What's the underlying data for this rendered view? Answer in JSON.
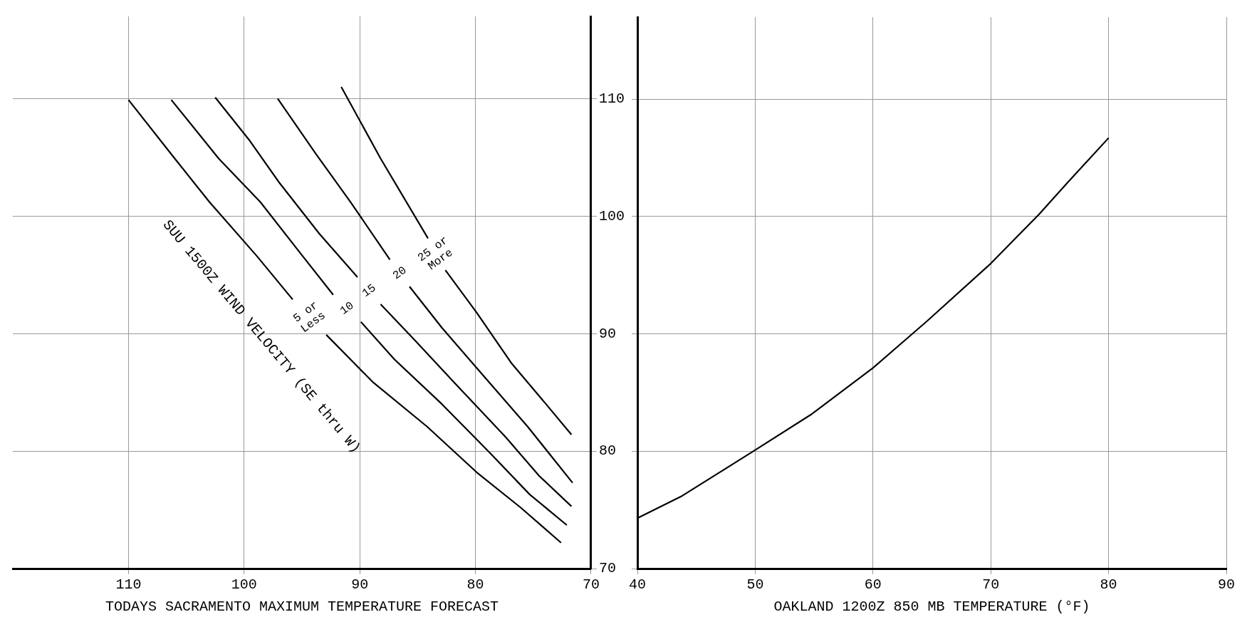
{
  "chart_data": [
    {
      "type": "line",
      "xlabel": "TODAYS SACRAMENTO MAXIMUM TEMPERATURE FORECAST",
      "xlim": [
        120,
        70
      ],
      "xticks": [
        110,
        100,
        90,
        80,
        70
      ],
      "ylim": [
        70,
        117
      ],
      "yticks": [
        70,
        80,
        90,
        100,
        110
      ],
      "grid": true,
      "legend": false,
      "marker": "none",
      "line_style": "solid",
      "annotations": [
        "SUU 1500Z WIND VELOCITY (SE thru W)"
      ],
      "series": [
        {
          "name": "5 or Less",
          "color": "#000000",
          "x": [
            110,
            106,
            103,
            98.9,
            95.8,
            94.3,
            92.9,
            88.9,
            84.2,
            79.9,
            76.1,
            72.6
          ],
          "values": [
            109.9,
            104.9,
            101.2,
            96.6,
            92.9,
            null,
            89.9,
            85.9,
            82.1,
            78.2,
            75.2,
            72.2
          ]
        },
        {
          "name": "10",
          "color": "#000000",
          "x": [
            106.3,
            102.2,
            98.6,
            95.1,
            92.3,
            91.1,
            89.9,
            87,
            82.9,
            78.8,
            75.3,
            72.1
          ],
          "values": [
            109.9,
            104.9,
            101.2,
            96.8,
            93.3,
            null,
            91,
            87.8,
            84,
            79.9,
            76.3,
            73.7
          ]
        },
        {
          "name": "15",
          "color": "#000000",
          "x": [
            102.5,
            99.5,
            97,
            93.5,
            90.2,
            89.2,
            88.2,
            85.3,
            81.8,
            77.4,
            74.5,
            71.7
          ],
          "values": [
            110.1,
            106.4,
            102.9,
            98.5,
            94.8,
            null,
            92.5,
            89.5,
            85.8,
            81.2,
            77.9,
            75.3
          ]
        },
        {
          "name": "20",
          "color": "#000000",
          "x": [
            97.1,
            93.8,
            90.8,
            87.4,
            86.5,
            85.7,
            82.9,
            79.3,
            75.5,
            71.6
          ],
          "values": [
            110,
            105.3,
            101.2,
            96.3,
            null,
            94,
            90.5,
            86.4,
            82.1,
            77.3
          ]
        },
        {
          "name": "25 or More",
          "color": "#000000",
          "x": [
            91.6,
            88.2,
            84.1,
            83.3,
            82.6,
            79.9,
            76.9,
            73.9,
            71.7
          ],
          "values": [
            111,
            104.9,
            98.1,
            null,
            95.4,
            91.8,
            87.5,
            84,
            81.4
          ]
        }
      ]
    },
    {
      "type": "line",
      "xlabel": "OAKLAND 1200Z 850 MB TEMPERATURE (°F)",
      "xlim": [
        40,
        90
      ],
      "xticks": [
        40,
        50,
        60,
        70,
        80,
        90
      ],
      "ylim": [
        70,
        117
      ],
      "yticks": [
        70,
        80,
        90,
        100,
        110
      ],
      "tick_labels": "x",
      "grid": true,
      "legend": false,
      "marker": "none",
      "line_style": "solid",
      "series": [
        {
          "color": "#000000",
          "x": [
            40,
            43.8,
            50,
            54.7,
            60,
            64.6,
            70,
            74.1,
            76.7,
            80
          ],
          "values": [
            74.3,
            76.2,
            80.1,
            83.1,
            87.1,
            91.1,
            96,
            100.2,
            103.1,
            106.7
          ]
        }
      ]
    }
  ]
}
